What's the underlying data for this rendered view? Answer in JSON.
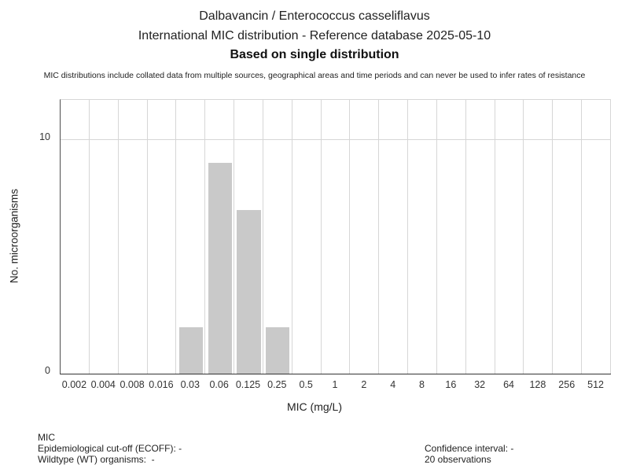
{
  "header": {
    "title_line1": "Dalbavancin / Enterococcus casseliflavus",
    "title_line2": "International MIC distribution - Reference database 2025-05-10",
    "title_line3": "Based on single distribution",
    "disclaimer": "MIC distributions include collated data from multiple sources, geographical areas and time periods and can never be used to infer rates of resistance"
  },
  "chart_data": {
    "type": "bar",
    "title": "Dalbavancin / Enterococcus casseliflavus - International MIC distribution",
    "categories": [
      "0.002",
      "0.004",
      "0.008",
      "0.016",
      "0.03",
      "0.06",
      "0.125",
      "0.25",
      "0.5",
      "1",
      "2",
      "4",
      "8",
      "16",
      "32",
      "64",
      "128",
      "256",
      "512"
    ],
    "values": [
      0,
      0,
      0,
      0,
      2,
      9,
      7,
      2,
      0,
      0,
      0,
      0,
      0,
      0,
      0,
      0,
      0,
      0,
      0
    ],
    "xlabel": "MIC (mg/L)",
    "ylabel": "No. microorganisms",
    "ylim": [
      0,
      11.7
    ],
    "yticks": [
      0,
      10
    ],
    "grid": true,
    "legend": "none",
    "bar_color": "#c9c9c9",
    "gridline_color": "#d6d6d6",
    "total_observations": 20
  },
  "footer": {
    "left_lines": [
      "MIC",
      "Epidemiological cut-off (ECOFF): -",
      "Wildtype (WT) organisms:  -"
    ],
    "right_lines": [
      "Confidence interval: -",
      "20 observations"
    ]
  }
}
